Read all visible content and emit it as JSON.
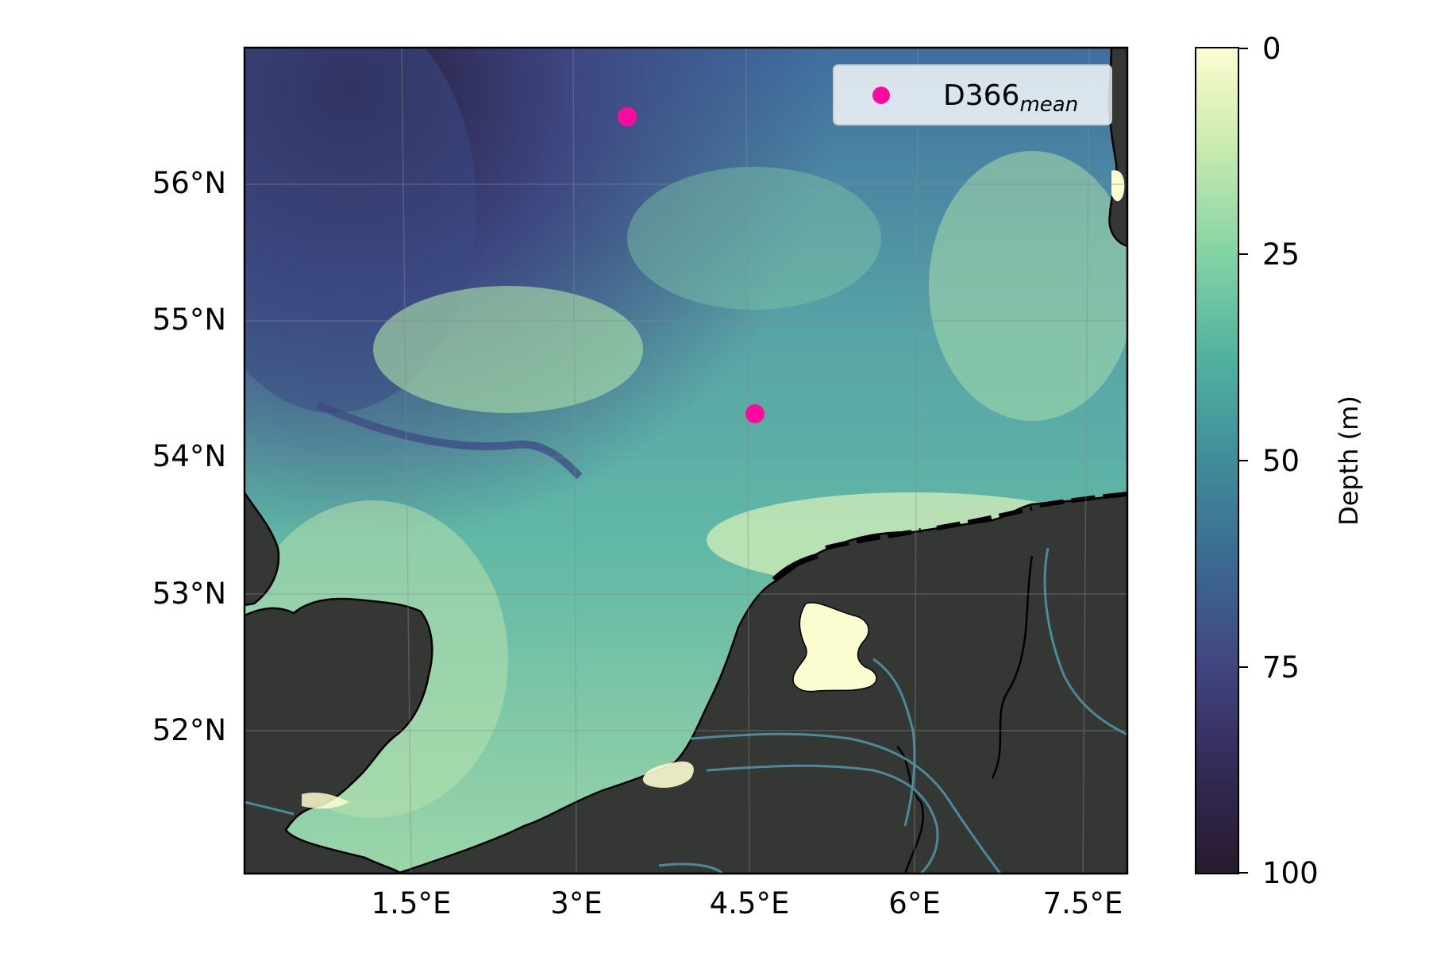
{
  "map": {
    "lon_ticks": [
      "1.5°E",
      "3°E",
      "4.5°E",
      "6°E",
      "7.5°E"
    ],
    "lat_ticks": [
      "56°N",
      "55°N",
      "54°N",
      "53°N",
      "52°N"
    ],
    "extent": {
      "lon": [
        0.2,
        7.9
      ],
      "lat": [
        51.0,
        57.0
      ]
    },
    "land_color": "#353735",
    "river_color": "#4a8a9a",
    "grid": true
  },
  "legend": {
    "label_main": "D366",
    "label_sub": "mean",
    "marker_color": "#ff0aa0",
    "position": "top-right"
  },
  "points": [
    {
      "lon": 3.5,
      "lat": 56.5
    },
    {
      "lon": 4.65,
      "lat": 54.33
    }
  ],
  "colorbar": {
    "label": "Depth (m)",
    "ticks": [
      "0",
      "25",
      "50",
      "75",
      "100"
    ],
    "range": [
      0,
      100
    ],
    "colors": [
      "#fcfdd0",
      "#c9ebb0",
      "#84d3a4",
      "#52b3a0",
      "#3f8d99",
      "#3b6a92",
      "#41457f",
      "#332b58",
      "#281a2c"
    ]
  }
}
